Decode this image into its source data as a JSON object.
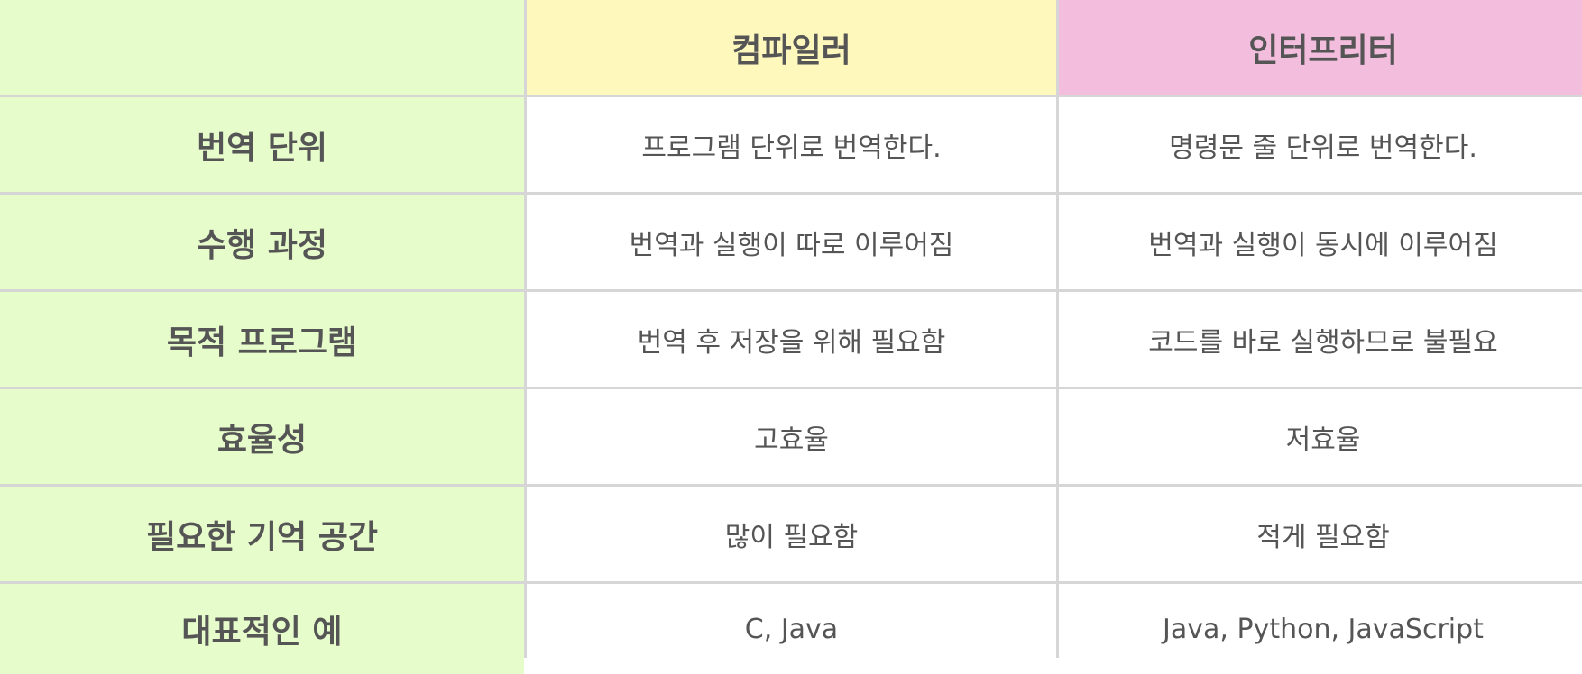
{
  "headers": {
    "corner": "",
    "col1": "컴파일러",
    "col2": "인터프리터"
  },
  "rows": [
    {
      "label": "번역 단위",
      "compiler": "프로그램 단위로 번역한다.",
      "interpreter": "명령문 줄 단위로 번역한다."
    },
    {
      "label": "수행 과정",
      "compiler": "번역과 실행이 따로 이루어짐",
      "interpreter": "번역과 실행이 동시에 이루어짐"
    },
    {
      "label": "목적 프로그램",
      "compiler": "번역 후 저장을 위해 필요함",
      "interpreter": "코드를 바로 실행하므로 불필요"
    },
    {
      "label": "효율성",
      "compiler": "고효율",
      "interpreter": "저효율"
    },
    {
      "label": "필요한 기억 공간",
      "compiler": "많이 필요함",
      "interpreter": "적게 필요함"
    },
    {
      "label": "대표적인 예",
      "compiler": "C, Java",
      "interpreter": "Java, Python, JavaScript"
    }
  ],
  "colors": {
    "rowhead_bg": "#e6fccb",
    "compiler_header_bg": "#fff8bd",
    "interpreter_header_bg": "#f3bddd",
    "grid_line": "#d6d6d6",
    "text": "#555555"
  }
}
